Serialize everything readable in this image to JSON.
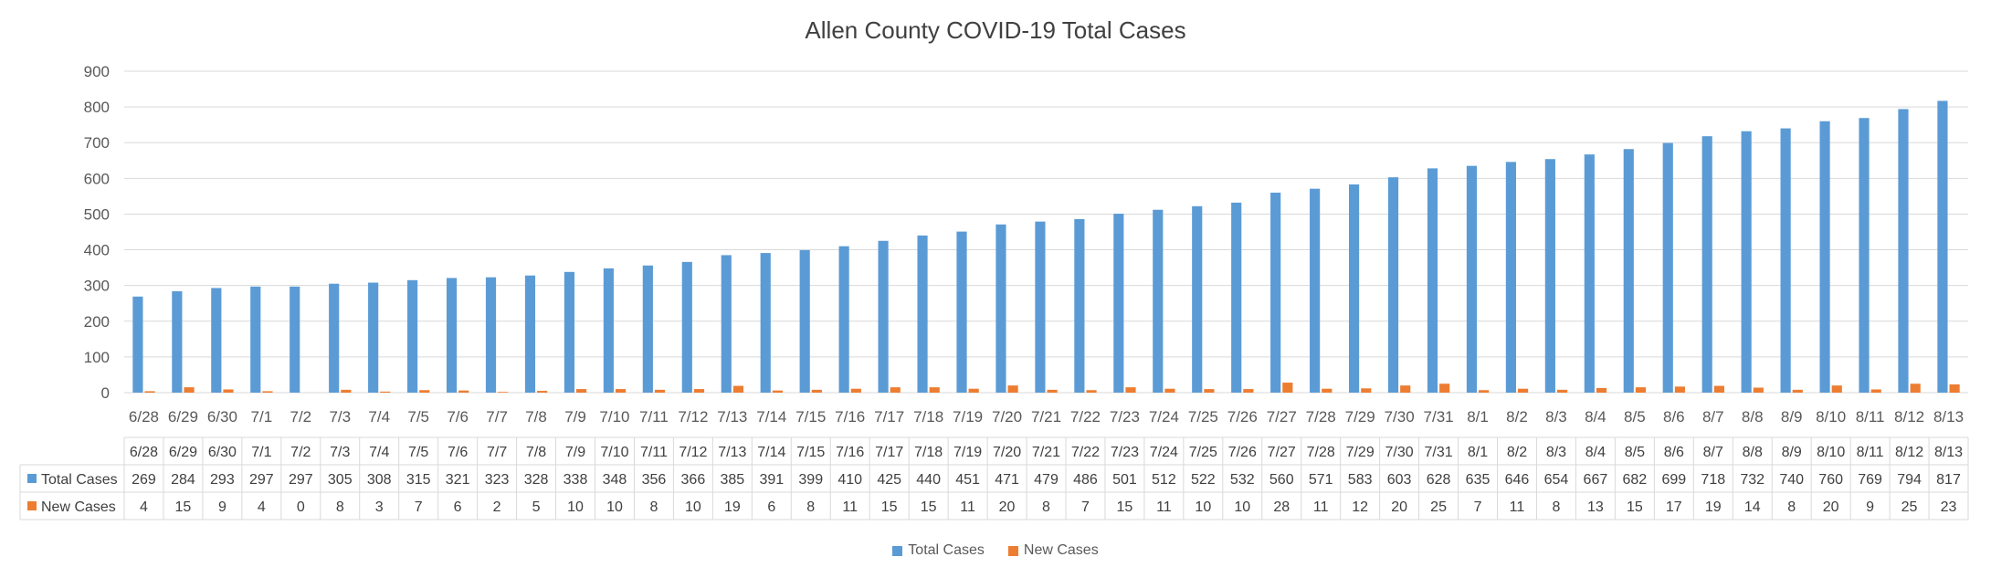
{
  "colors": {
    "total": "#5B9BD5",
    "new": "#ED7D31",
    "grid": "#D9D9D9"
  },
  "chart_data": {
    "type": "bar",
    "title": "Allen County COVID-19 Total Cases",
    "ylim": [
      0,
      900
    ],
    "yticks": [
      0,
      100,
      200,
      300,
      400,
      500,
      600,
      700,
      800,
      900
    ],
    "grid": true,
    "legend_position": "bottom",
    "data_table": true,
    "categories": [
      "6/28",
      "6/29",
      "6/30",
      "7/1",
      "7/2",
      "7/3",
      "7/4",
      "7/5",
      "7/6",
      "7/7",
      "7/8",
      "7/9",
      "7/10",
      "7/11",
      "7/12",
      "7/13",
      "7/14",
      "7/15",
      "7/16",
      "7/17",
      "7/18",
      "7/19",
      "7/20",
      "7/21",
      "7/22",
      "7/23",
      "7/24",
      "7/25",
      "7/26",
      "7/27",
      "7/28",
      "7/29",
      "7/30",
      "7/31",
      "8/1",
      "8/2",
      "8/3",
      "8/4",
      "8/5",
      "8/6",
      "8/7",
      "8/8",
      "8/9",
      "8/10",
      "8/11",
      "8/12",
      "8/13"
    ],
    "series": [
      {
        "name": "Total Cases",
        "values": [
          269,
          284,
          293,
          297,
          297,
          305,
          308,
          315,
          321,
          323,
          328,
          338,
          348,
          356,
          366,
          385,
          391,
          399,
          410,
          425,
          440,
          451,
          471,
          479,
          486,
          501,
          512,
          522,
          532,
          560,
          571,
          583,
          603,
          628,
          635,
          646,
          654,
          667,
          682,
          699,
          718,
          732,
          740,
          760,
          769,
          794,
          817
        ]
      },
      {
        "name": "New Cases",
        "values": [
          4,
          15,
          9,
          4,
          0,
          8,
          3,
          7,
          6,
          2,
          5,
          10,
          10,
          8,
          10,
          19,
          6,
          8,
          11,
          15,
          15,
          11,
          20,
          8,
          7,
          15,
          11,
          10,
          10,
          28,
          11,
          12,
          20,
          25,
          7,
          11,
          8,
          13,
          15,
          17,
          19,
          14,
          8,
          20,
          9,
          25,
          23
        ]
      }
    ]
  }
}
